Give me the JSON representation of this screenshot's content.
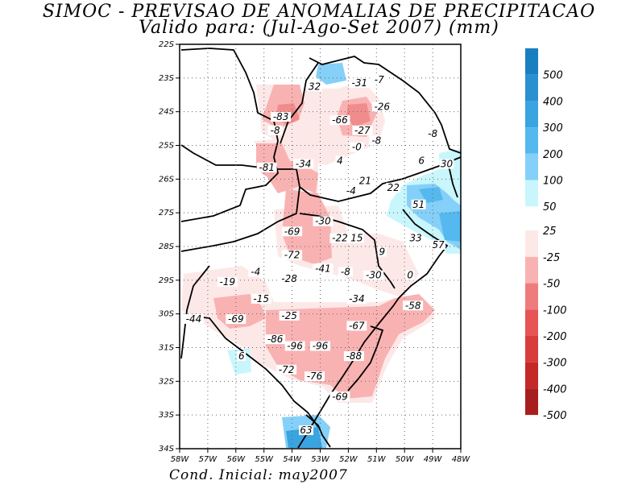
{
  "title_line1": "SIMOC - PREVISAO DE ANOMALIAS DE PRECIPITACAO",
  "title_line2": "Valido para: (Jul-Ago-Set 2007) (mm)",
  "footer": "Cond. Inicial: may2007",
  "colors": {
    "blue5": "#1a7fc0",
    "blue4": "#2a90d0",
    "blue3": "#3aa4e0",
    "blue2": "#55b8ee",
    "blue1": "#85d0f8",
    "blue0": "#c8f6fc",
    "red0": "#fde8e8",
    "red1": "#f9b2b2",
    "red2": "#ee7c7c",
    "red3": "#e85454",
    "red4": "#d83c3c",
    "red5": "#c42828",
    "red6": "#a81e1e"
  },
  "lon_labels": [
    "58W",
    "57W",
    "56W",
    "55W",
    "54W",
    "53W",
    "52W",
    "51W",
    "50W",
    "49W",
    "48W"
  ],
  "lat_labels": [
    "22S",
    "23S",
    "24S",
    "25S",
    "26S",
    "27S",
    "28S",
    "29S",
    "30S",
    "31S",
    "32S",
    "33S",
    "34S"
  ],
  "legend_labels": [
    "500",
    "400",
    "300",
    "200",
    "100",
    "50",
    "25",
    "-25",
    "-50",
    "-100",
    "-200",
    "-300",
    "-400",
    "-500"
  ],
  "map_values": [
    {
      "text": "32",
      "lon": -53.2,
      "lat": -23.3
    },
    {
      "text": "-31",
      "lon": -51.6,
      "lat": -23.2
    },
    {
      "text": "-7",
      "lon": -50.9,
      "lat": -23.1
    },
    {
      "text": "-26",
      "lon": -50.8,
      "lat": -23.9
    },
    {
      "text": "-83",
      "lon": -54.4,
      "lat": -24.2
    },
    {
      "text": "-66",
      "lon": -52.3,
      "lat": -24.3
    },
    {
      "text": "-8",
      "lon": -54.6,
      "lat": -24.6
    },
    {
      "text": "-27",
      "lon": -51.5,
      "lat": -24.6
    },
    {
      "text": "-8",
      "lon": -49.0,
      "lat": -24.7
    },
    {
      "text": "-8",
      "lon": -51.0,
      "lat": -24.9
    },
    {
      "text": "-0",
      "lon": -51.7,
      "lat": -25.1
    },
    {
      "text": "4",
      "lon": -52.3,
      "lat": -25.5
    },
    {
      "text": "6",
      "lon": -49.4,
      "lat": -25.5
    },
    {
      "text": "30",
      "lon": -48.5,
      "lat": -25.6
    },
    {
      "text": "-81",
      "lon": -54.9,
      "lat": -25.7
    },
    {
      "text": "-34",
      "lon": -53.6,
      "lat": -25.6
    },
    {
      "text": "21",
      "lon": -51.4,
      "lat": -26.1
    },
    {
      "text": "22",
      "lon": -50.4,
      "lat": -26.3
    },
    {
      "text": "-4",
      "lon": -51.9,
      "lat": -26.4
    },
    {
      "text": "51",
      "lon": -49.5,
      "lat": -26.8
    },
    {
      "text": "-30",
      "lon": -52.9,
      "lat": -27.3
    },
    {
      "text": "-69",
      "lon": -54.0,
      "lat": -27.6
    },
    {
      "text": "-22",
      "lon": -52.3,
      "lat": -27.8
    },
    {
      "text": "15",
      "lon": -51.7,
      "lat": -27.8
    },
    {
      "text": "33",
      "lon": -49.6,
      "lat": -27.8
    },
    {
      "text": "57",
      "lon": -48.8,
      "lat": -28.0
    },
    {
      "text": "9",
      "lon": -50.8,
      "lat": -28.2
    },
    {
      "text": "-72",
      "lon": -54.0,
      "lat": -28.3
    },
    {
      "text": "-41",
      "lon": -52.9,
      "lat": -28.7
    },
    {
      "text": "-8",
      "lon": -52.1,
      "lat": -28.8
    },
    {
      "text": "-30",
      "lon": -51.1,
      "lat": -28.9
    },
    {
      "text": "0",
      "lon": -49.8,
      "lat": -28.9
    },
    {
      "text": "-4",
      "lon": -55.3,
      "lat": -28.8
    },
    {
      "text": "-28",
      "lon": -54.1,
      "lat": -29.0
    },
    {
      "text": "-19",
      "lon": -56.3,
      "lat": -29.1
    },
    {
      "text": "-15",
      "lon": -55.1,
      "lat": -29.6
    },
    {
      "text": "-34",
      "lon": -51.7,
      "lat": -29.6
    },
    {
      "text": "-58",
      "lon": -49.7,
      "lat": -29.8
    },
    {
      "text": "-25",
      "lon": -54.1,
      "lat": -30.1
    },
    {
      "text": "-44",
      "lon": -57.5,
      "lat": -30.2
    },
    {
      "text": "-69",
      "lon": -56.0,
      "lat": -30.2
    },
    {
      "text": "-67",
      "lon": -51.7,
      "lat": -30.4
    },
    {
      "text": "-86",
      "lon": -54.6,
      "lat": -30.8
    },
    {
      "text": "-96",
      "lon": -53.9,
      "lat": -31.0
    },
    {
      "text": "-96",
      "lon": -53.0,
      "lat": -31.0
    },
    {
      "text": "-88",
      "lon": -51.8,
      "lat": -31.3
    },
    {
      "text": "6",
      "lon": -55.8,
      "lat": -31.3
    },
    {
      "text": "-72",
      "lon": -54.2,
      "lat": -31.7
    },
    {
      "text": "-76",
      "lon": -53.2,
      "lat": -31.9
    },
    {
      "text": "-69",
      "lon": -52.3,
      "lat": -32.5
    },
    {
      "text": "63",
      "lon": -53.5,
      "lat": -33.5
    }
  ]
}
